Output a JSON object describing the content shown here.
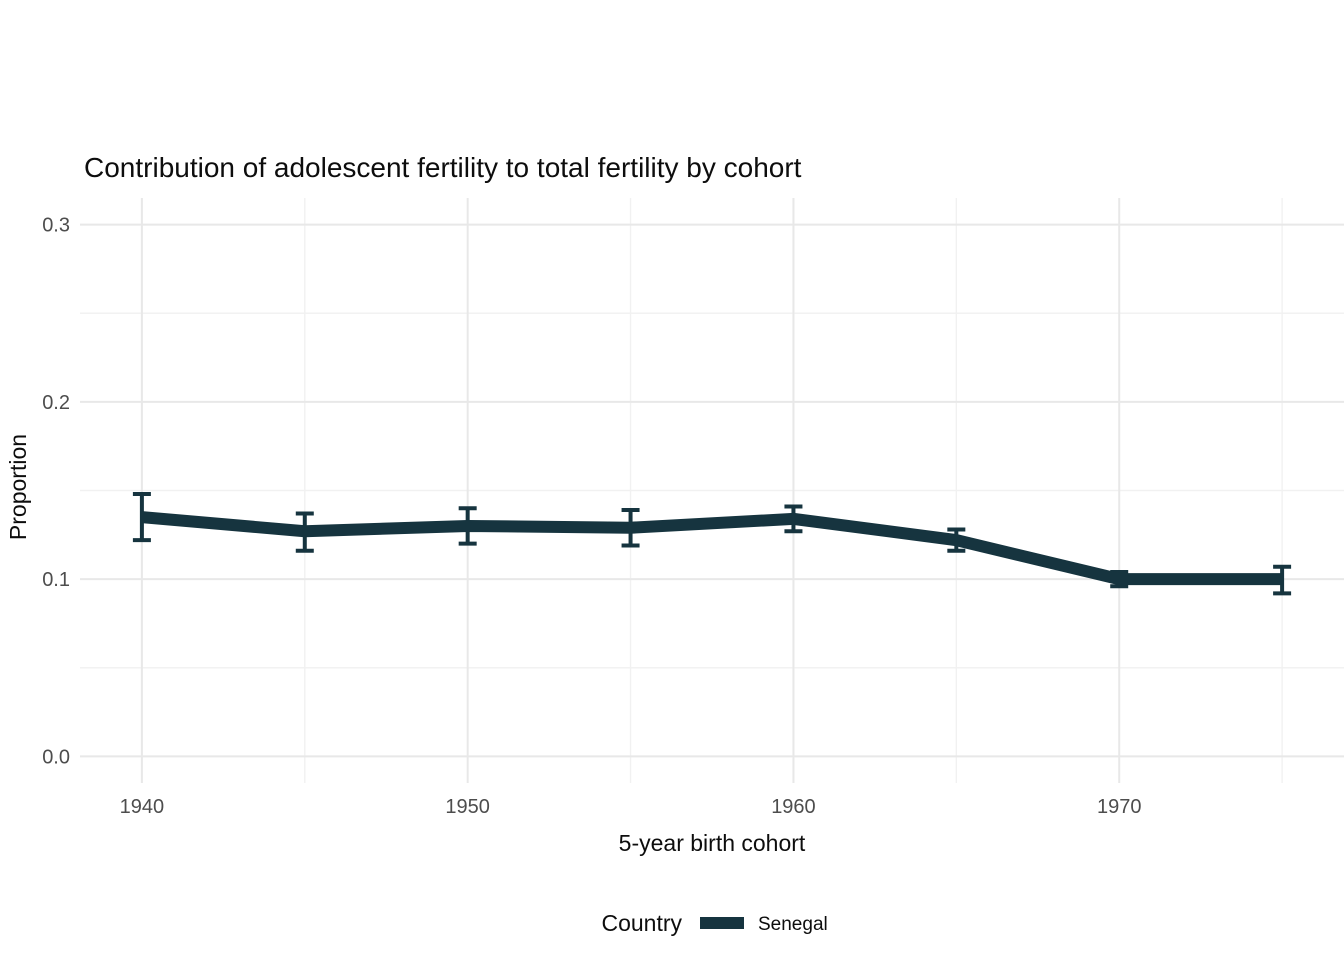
{
  "chart_data": {
    "type": "line",
    "title": "Contribution of adolescent fertility to total fertility by cohort",
    "xlabel": "5-year birth cohort",
    "ylabel": "Proportion",
    "xlim": [
      1938.1,
      1976.9
    ],
    "ylim": [
      -0.015,
      0.315
    ],
    "grid": true,
    "x_major_ticks": [
      1940,
      1950,
      1960,
      1970
    ],
    "x_major_labels": [
      "1940",
      "1950",
      "1960",
      "1970"
    ],
    "x_minor_ticks": [
      1945,
      1955,
      1965,
      1975
    ],
    "y_major_ticks": [
      0.0,
      0.1,
      0.2,
      0.3
    ],
    "y_major_labels": [
      "0.0",
      "0.1",
      "0.2",
      "0.3"
    ],
    "y_minor_ticks": [
      0.05,
      0.15,
      0.25
    ],
    "series": [
      {
        "name": "Senegal",
        "color": "#16343f",
        "x": [
          1940,
          1945,
          1950,
          1955,
          1960,
          1965,
          1970,
          1975
        ],
        "y": [
          0.135,
          0.127,
          0.13,
          0.129,
          0.134,
          0.122,
          0.1,
          0.1
        ],
        "ymin": [
          0.122,
          0.116,
          0.12,
          0.119,
          0.127,
          0.116,
          0.096,
          0.092
        ],
        "ymax": [
          0.148,
          0.137,
          0.14,
          0.139,
          0.141,
          0.128,
          0.104,
          0.107
        ]
      }
    ],
    "legend": {
      "position": "bottom",
      "title": "Country",
      "entries": [
        {
          "label": "Senegal",
          "color": "#16343f"
        }
      ]
    },
    "colors": {
      "background": "#ffffff",
      "grid_major": "#e8e8e8",
      "grid_minor": "#f1f1f1",
      "tick_label": "#4d4d4d",
      "text": "#0d0d0d"
    }
  }
}
